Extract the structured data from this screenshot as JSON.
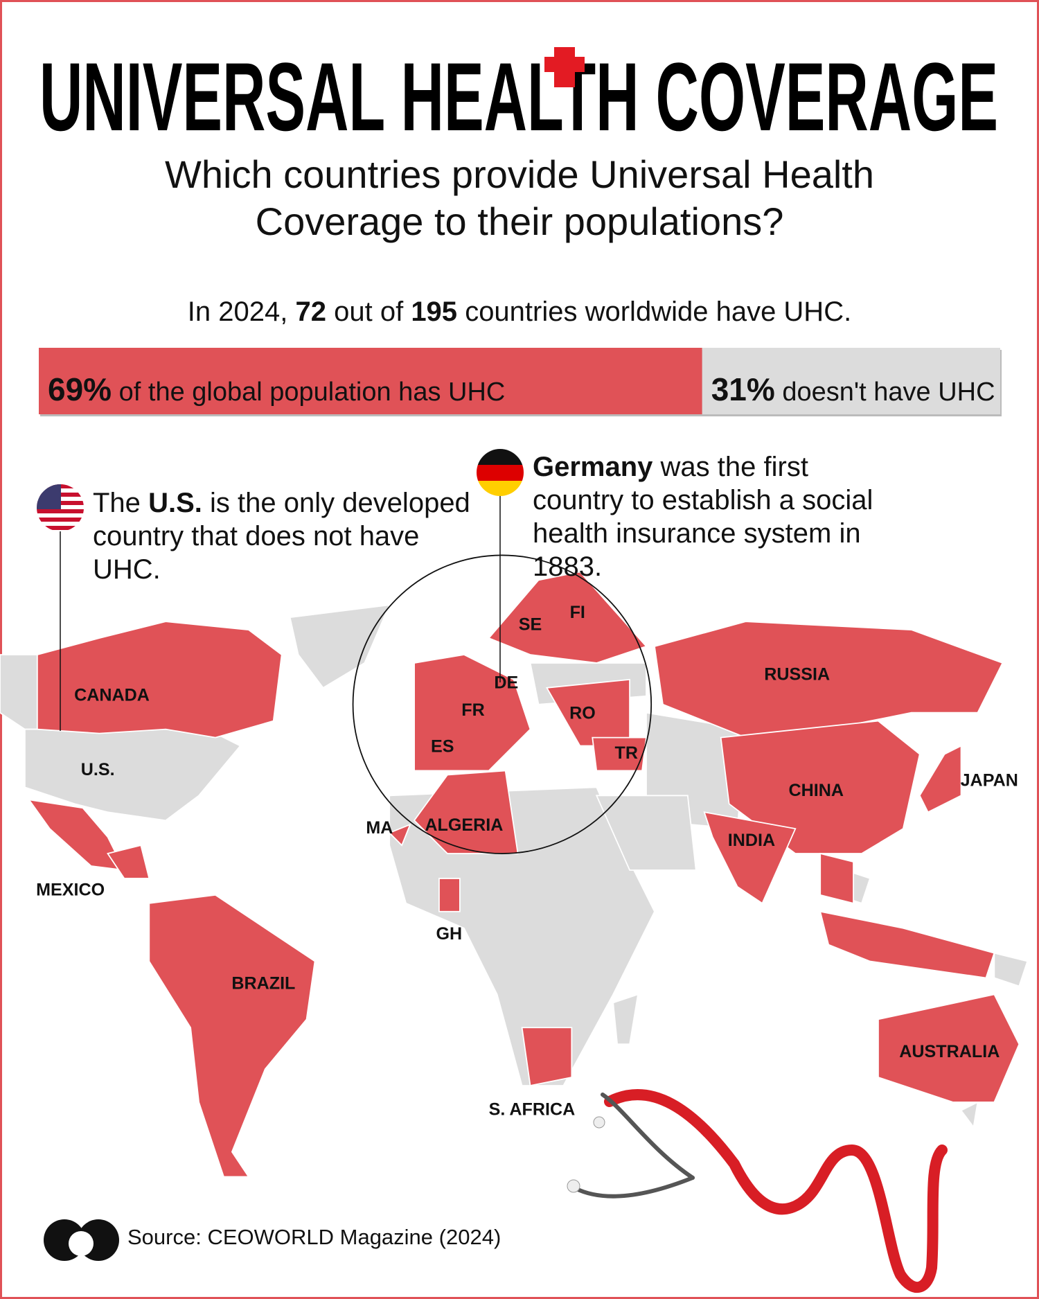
{
  "header": {
    "title": "UNIVERSAL HEALTH COVERAGE",
    "subtitle": "Which countries provide Universal Health Coverage to their populations?"
  },
  "stats": {
    "lead": "In 2024,",
    "countries_with_uhc": 72,
    "middle": "out of",
    "total_countries": 195,
    "end": "countries worldwide have UHC."
  },
  "chart_data": {
    "type": "stacked-bar",
    "categories": [
      "of the global population has UHC",
      "doesn't have UHC"
    ],
    "values": [
      69,
      31
    ],
    "value_labels": [
      "69%",
      "31%"
    ],
    "colors": [
      "#e05257",
      "#dcdcdc"
    ]
  },
  "callouts": {
    "us": {
      "pre": "The",
      "bold": "U.S.",
      "rest": "is the only developed country that does not have UHC."
    },
    "germany": {
      "bold": "Germany",
      "rest": "was the first country to establish a social health insurance system in 1883."
    }
  },
  "map": {
    "labels": [
      "CANADA",
      "U.S.",
      "MEXICO",
      "BRAZIL",
      "MA",
      "ALGERIA",
      "GH",
      "S. AFRICA",
      "SE",
      "FI",
      "DE",
      "FR",
      "RO",
      "ES",
      "TR",
      "RUSSIA",
      "CHINA",
      "JAPAN",
      "INDIA",
      "AUSTRALIA"
    ]
  },
  "footer": {
    "source": "Source: CEOWORLD Magazine (2024)"
  }
}
